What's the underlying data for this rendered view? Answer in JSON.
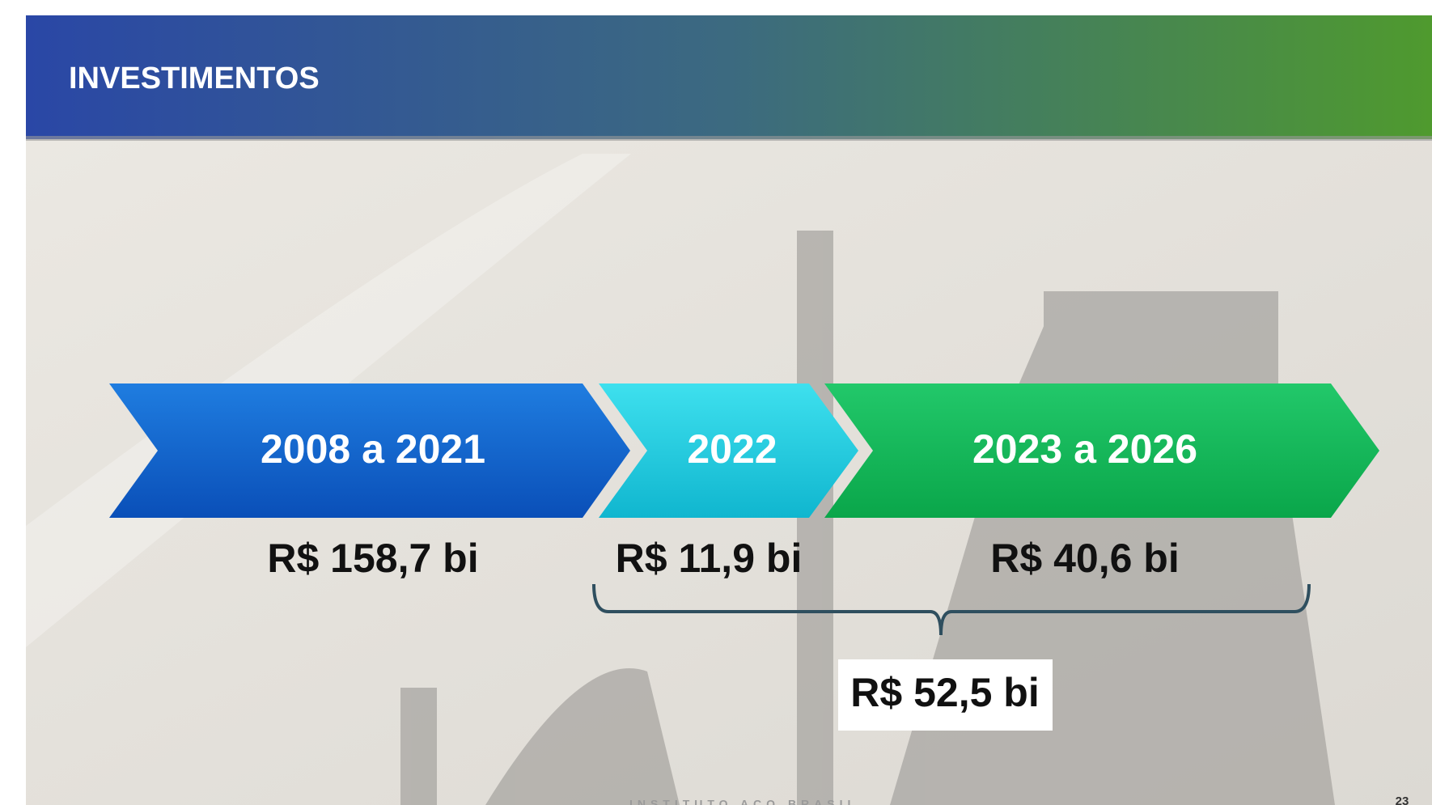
{
  "header": {
    "title": "INVESTIMENTOS"
  },
  "timeline": {
    "periods": [
      {
        "label": "2008 a 2021",
        "value": "R$ 158,7 bi"
      },
      {
        "label": "2022",
        "value": "R$ 11,9 bi"
      },
      {
        "label": "2023 a 2026",
        "value": "R$ 40,6 bi"
      }
    ]
  },
  "total": {
    "value": "R$ 52,5 bi"
  },
  "footer": {
    "org": "INSTITUTO AÇO BRASIL",
    "page": "23"
  }
}
